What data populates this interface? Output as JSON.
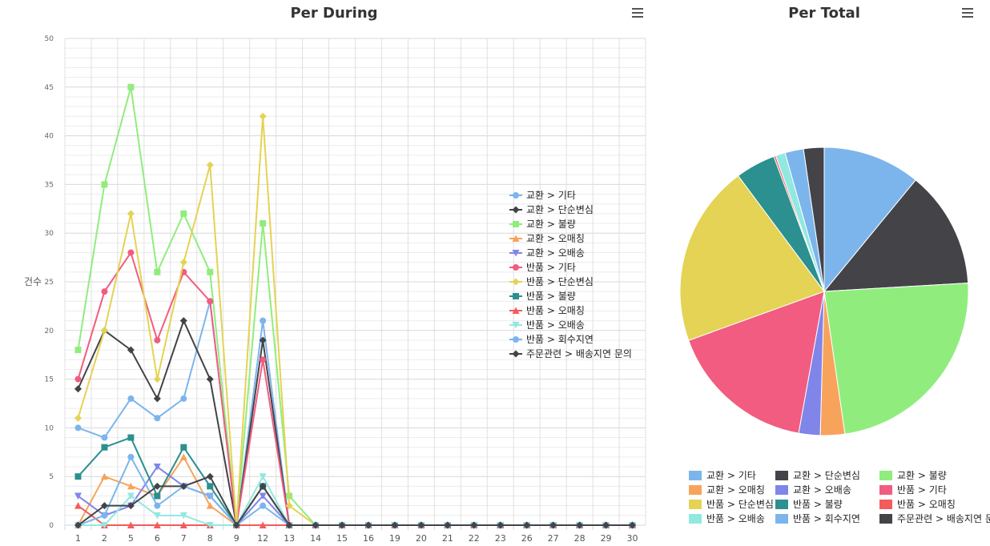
{
  "line_chart": {
    "title": "Per During",
    "menu_icon": "hamburger-menu-icon"
  },
  "pie_chart": {
    "title": "Per Total",
    "menu_icon": "hamburger-menu-icon"
  },
  "chart_data": [
    {
      "type": "line",
      "title": "Per During",
      "ylabel": "건수",
      "xlabel": "",
      "ylim": [
        0,
        50
      ],
      "yticks": [
        0,
        5,
        10,
        15,
        20,
        25,
        30,
        35,
        40,
        45,
        50
      ],
      "categories": [
        "1",
        "2",
        "5",
        "6",
        "7",
        "8",
        "9",
        "12",
        "13",
        "14",
        "15",
        "16",
        "19",
        "20",
        "21",
        "22",
        "23",
        "26",
        "27",
        "28",
        "29",
        "30"
      ],
      "grid": true,
      "legend_position": "right",
      "series": [
        {
          "name": "교환 > 기타",
          "color": "#7cb5ec",
          "marker": "circle",
          "values": [
            10,
            9,
            13,
            11,
            13,
            23,
            0,
            21,
            0,
            0,
            0,
            0,
            0,
            0,
            0,
            0,
            0,
            0,
            0,
            0,
            0,
            0
          ]
        },
        {
          "name": "교환 > 단순변심",
          "color": "#434348",
          "marker": "diamond",
          "values": [
            14,
            20,
            18,
            13,
            21,
            15,
            0,
            19,
            0,
            0,
            0,
            0,
            0,
            0,
            0,
            0,
            0,
            0,
            0,
            0,
            0,
            0
          ]
        },
        {
          "name": "교환 > 불량",
          "color": "#90ed7d",
          "marker": "square",
          "values": [
            18,
            35,
            45,
            26,
            32,
            26,
            0,
            31,
            3,
            0,
            0,
            0,
            0,
            0,
            0,
            0,
            0,
            0,
            0,
            0,
            0,
            0
          ]
        },
        {
          "name": "교환 > 오매칭",
          "color": "#f7a35c",
          "marker": "triangle",
          "values": [
            0,
            5,
            4,
            3,
            7,
            2,
            0,
            4,
            0,
            0,
            0,
            0,
            0,
            0,
            0,
            0,
            0,
            0,
            0,
            0,
            0,
            0
          ]
        },
        {
          "name": "교환 > 오배송",
          "color": "#8085e9",
          "marker": "triangle-down",
          "values": [
            3,
            1,
            2,
            6,
            4,
            3,
            0,
            3,
            0,
            0,
            0,
            0,
            0,
            0,
            0,
            0,
            0,
            0,
            0,
            0,
            0,
            0
          ]
        },
        {
          "name": "반품 > 기타",
          "color": "#f15c80",
          "marker": "circle",
          "values": [
            15,
            24,
            28,
            19,
            26,
            23,
            0,
            17,
            0,
            0,
            0,
            0,
            0,
            0,
            0,
            0,
            0,
            0,
            0,
            0,
            0,
            0
          ]
        },
        {
          "name": "반품 > 단순변심",
          "color": "#e4d354",
          "marker": "diamond",
          "values": [
            11,
            20,
            32,
            15,
            27,
            37,
            0,
            42,
            2,
            0,
            0,
            0,
            0,
            0,
            0,
            0,
            0,
            0,
            0,
            0,
            0,
            0
          ]
        },
        {
          "name": "반품 > 불량",
          "color": "#2b908f",
          "marker": "square",
          "values": [
            5,
            8,
            9,
            3,
            8,
            4,
            0,
            4,
            0,
            0,
            0,
            0,
            0,
            0,
            0,
            0,
            0,
            0,
            0,
            0,
            0,
            0
          ]
        },
        {
          "name": "반품 > 오매칭",
          "color": "#f45b5b",
          "marker": "triangle",
          "values": [
            2,
            0,
            0,
            0,
            0,
            0,
            0,
            0,
            0,
            0,
            0,
            0,
            0,
            0,
            0,
            0,
            0,
            0,
            0,
            0,
            0,
            0
          ]
        },
        {
          "name": "반품 > 오배송",
          "color": "#91e8e1",
          "marker": "triangle-down",
          "values": [
            0,
            0,
            3,
            1,
            1,
            0,
            0,
            5,
            0,
            0,
            0,
            0,
            0,
            0,
            0,
            0,
            0,
            0,
            0,
            0,
            0,
            0
          ]
        },
        {
          "name": "반품 > 회수지연",
          "color": "#7cb5ec",
          "marker": "circle",
          "values": [
            0,
            1,
            7,
            2,
            4,
            3,
            0,
            2,
            0,
            0,
            0,
            0,
            0,
            0,
            0,
            0,
            0,
            0,
            0,
            0,
            0,
            0
          ]
        },
        {
          "name": "주문관련 > 배송지연 문의",
          "color": "#434348",
          "marker": "diamond",
          "values": [
            0,
            2,
            2,
            4,
            4,
            5,
            0,
            4,
            0,
            0,
            0,
            0,
            0,
            0,
            0,
            0,
            0,
            0,
            0,
            0,
            0,
            0
          ]
        }
      ]
    },
    {
      "type": "pie",
      "title": "Per Total",
      "legend_position": "bottom",
      "slices": [
        {
          "name": "교환 > 기타",
          "value": 100,
          "color": "#7cb5ec"
        },
        {
          "name": "교환 > 단순변심",
          "value": 120,
          "color": "#434348"
        },
        {
          "name": "교환 > 불량",
          "value": 216,
          "color": "#90ed7d"
        },
        {
          "name": "교환 > 오매칭",
          "value": 25,
          "color": "#f7a35c"
        },
        {
          "name": "교환 > 오배송",
          "value": 22,
          "color": "#8085e9"
        },
        {
          "name": "반품 > 기타",
          "value": 152,
          "color": "#f15c80"
        },
        {
          "name": "반품 > 단순변심",
          "value": 186,
          "color": "#e4d354"
        },
        {
          "name": "반품 > 불량",
          "value": 41,
          "color": "#2b908f"
        },
        {
          "name": "반품 > 오매칭",
          "value": 2,
          "color": "#f45b5b"
        },
        {
          "name": "반품 > 오배송",
          "value": 10,
          "color": "#91e8e1"
        },
        {
          "name": "반품 > 회수지연",
          "value": 19,
          "color": "#7cb5ec"
        },
        {
          "name": "주문관련 > 배송지연 문의",
          "value": 21,
          "color": "#434348"
        }
      ]
    }
  ]
}
